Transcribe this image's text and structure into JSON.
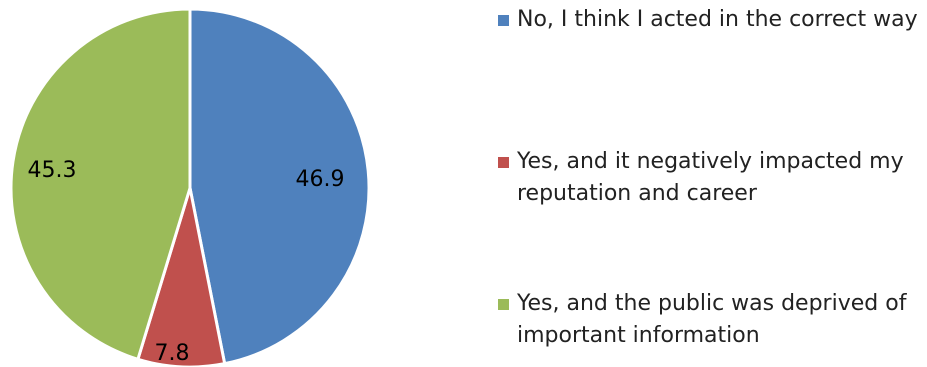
{
  "chart_data": {
    "type": "pie",
    "categories": [
      "No, I think I acted in the correct way",
      "Yes, and it negatively impacted my reputation and career",
      "Yes, and the public was deprived of important information"
    ],
    "values": [
      46.9,
      7.8,
      45.3
    ],
    "data_labels": [
      "46.9",
      "7.8",
      "45.3"
    ],
    "colors": [
      "#4f81bd",
      "#c0504d",
      "#9bbb59"
    ],
    "legend_position": "right",
    "start": "top, clockwise"
  },
  "legend": [
    {
      "label": "No, I think I acted in the correct way",
      "color": "#4f81bd"
    },
    {
      "label": "Yes, and it negatively impacted my reputation and career",
      "color": "#c0504d"
    },
    {
      "label": "Yes, and the public was deprived of important information",
      "color": "#9bbb59"
    }
  ]
}
